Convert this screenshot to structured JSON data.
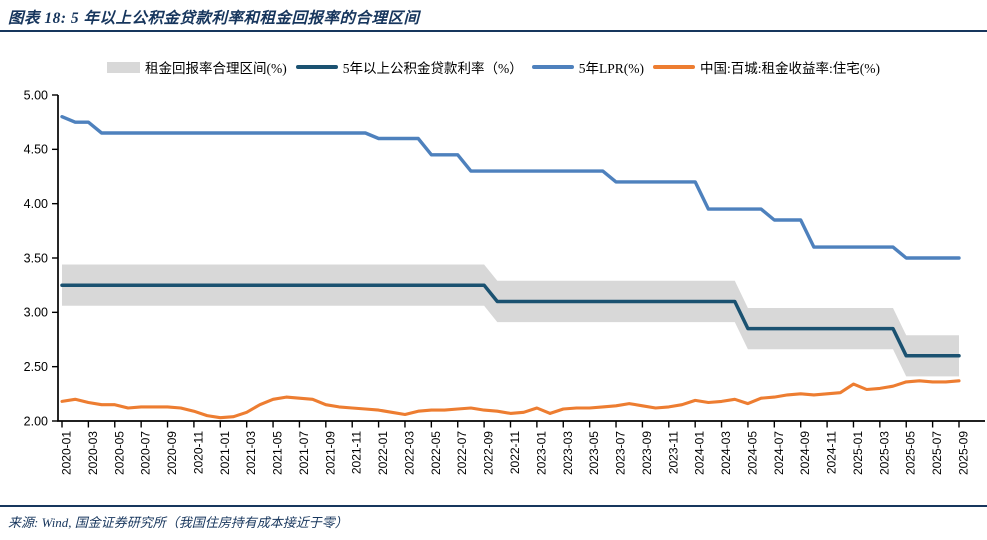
{
  "header": {
    "title": "图表 18: 5 年以上公积金贷款利率和租金回报率的合理区间"
  },
  "legend": {
    "items": [
      {
        "label": "租金回报率合理区间(%)",
        "swatch": "box",
        "color": "#D8D8D8"
      },
      {
        "label": "5年以上公积金贷款利率（%）",
        "swatch": "line",
        "color": "#1B5271"
      },
      {
        "label": "5年LPR(%)",
        "swatch": "line",
        "color": "#4E81BD"
      },
      {
        "label": "中国:百城:租金收益率:住宅(%)",
        "swatch": "line",
        "color": "#ED7D31"
      }
    ]
  },
  "footer": {
    "source": "来源: Wind, 国金证券研究所（我国住房持有成本接近于零）"
  },
  "chart_data": {
    "type": "line",
    "title": "5 年以上公积金贷款利率和租金回报率的合理区间",
    "x_start": "2020-01",
    "x_end": "2025-09",
    "x_months_total": 69,
    "x_tick_labels": [
      "2020-01",
      "2020-03",
      "2020-05",
      "2020-07",
      "2020-09",
      "2020-11",
      "2021-01",
      "2021-03",
      "2021-05",
      "2021-07",
      "2021-09",
      "2021-11",
      "2022-01",
      "2022-03",
      "2022-05",
      "2022-07",
      "2022-09",
      "2022-11",
      "2023-01",
      "2023-03",
      "2023-05",
      "2023-07",
      "2023-09",
      "2023-11",
      "2024-01",
      "2024-03",
      "2024-05",
      "2024-07",
      "2024-09",
      "2024-11",
      "2025-01",
      "2025-03",
      "2025-05",
      "2025-07",
      "2025-09"
    ],
    "y_tick_labels": [
      "5.00",
      "4.50",
      "4.00",
      "3.50",
      "3.00",
      "2.50",
      "2.00"
    ],
    "ylim": [
      2.0,
      5.0
    ],
    "grid": false,
    "legend_position": "top",
    "series": [
      {
        "id": "band",
        "name": "租金回报率合理区间(%)",
        "type": "band",
        "color": "#D8D8D8",
        "follows": "5年以上公积金贷款利率（%）",
        "upper_offset": 0.19,
        "lower_offset": 0.19
      },
      {
        "id": "provident",
        "name": "5年以上公积金贷款利率（%）",
        "type": "line",
        "color": "#1B5271",
        "values": [
          3.25,
          3.25,
          3.25,
          3.25,
          3.25,
          3.25,
          3.25,
          3.25,
          3.25,
          3.25,
          3.25,
          3.25,
          3.25,
          3.25,
          3.25,
          3.25,
          3.25,
          3.25,
          3.25,
          3.25,
          3.25,
          3.25,
          3.25,
          3.25,
          3.25,
          3.25,
          3.25,
          3.25,
          3.25,
          3.25,
          3.25,
          3.25,
          3.25,
          3.1,
          3.1,
          3.1,
          3.1,
          3.1,
          3.1,
          3.1,
          3.1,
          3.1,
          3.1,
          3.1,
          3.1,
          3.1,
          3.1,
          3.1,
          3.1,
          3.1,
          3.1,
          3.1,
          2.85,
          2.85,
          2.85,
          2.85,
          2.85,
          2.85,
          2.85,
          2.85,
          2.85,
          2.85,
          2.85,
          2.85,
          2.6,
          2.6,
          2.6,
          2.6,
          2.6
        ]
      },
      {
        "id": "lpr5y",
        "name": "5年LPR(%)",
        "type": "line",
        "color": "#4E81BD",
        "values": [
          4.8,
          4.75,
          4.75,
          4.65,
          4.65,
          4.65,
          4.65,
          4.65,
          4.65,
          4.65,
          4.65,
          4.65,
          4.65,
          4.65,
          4.65,
          4.65,
          4.65,
          4.65,
          4.65,
          4.65,
          4.65,
          4.65,
          4.65,
          4.65,
          4.6,
          4.6,
          4.6,
          4.6,
          4.45,
          4.45,
          4.45,
          4.3,
          4.3,
          4.3,
          4.3,
          4.3,
          4.3,
          4.3,
          4.3,
          4.3,
          4.3,
          4.3,
          4.2,
          4.2,
          4.2,
          4.2,
          4.2,
          4.2,
          4.2,
          3.95,
          3.95,
          3.95,
          3.95,
          3.95,
          3.85,
          3.85,
          3.85,
          3.6,
          3.6,
          3.6,
          3.6,
          3.6,
          3.6,
          3.6,
          3.5,
          3.5,
          3.5,
          3.5,
          3.5
        ]
      },
      {
        "id": "rental_yield",
        "name": "中国:百城:租金收益率:住宅(%)",
        "type": "line",
        "color": "#ED7D31",
        "values": [
          2.18,
          2.2,
          2.17,
          2.15,
          2.15,
          2.12,
          2.13,
          2.13,
          2.13,
          2.12,
          2.09,
          2.05,
          2.03,
          2.04,
          2.08,
          2.15,
          2.2,
          2.22,
          2.21,
          2.2,
          2.15,
          2.13,
          2.12,
          2.11,
          2.1,
          2.08,
          2.06,
          2.09,
          2.1,
          2.1,
          2.11,
          2.12,
          2.1,
          2.09,
          2.07,
          2.08,
          2.12,
          2.07,
          2.11,
          2.12,
          2.12,
          2.13,
          2.14,
          2.16,
          2.14,
          2.12,
          2.13,
          2.15,
          2.19,
          2.17,
          2.18,
          2.2,
          2.16,
          2.21,
          2.22,
          2.24,
          2.25,
          2.24,
          2.25,
          2.26,
          2.34,
          2.29,
          2.3,
          2.32,
          2.36,
          2.37,
          2.36,
          2.36,
          2.37
        ]
      }
    ]
  }
}
